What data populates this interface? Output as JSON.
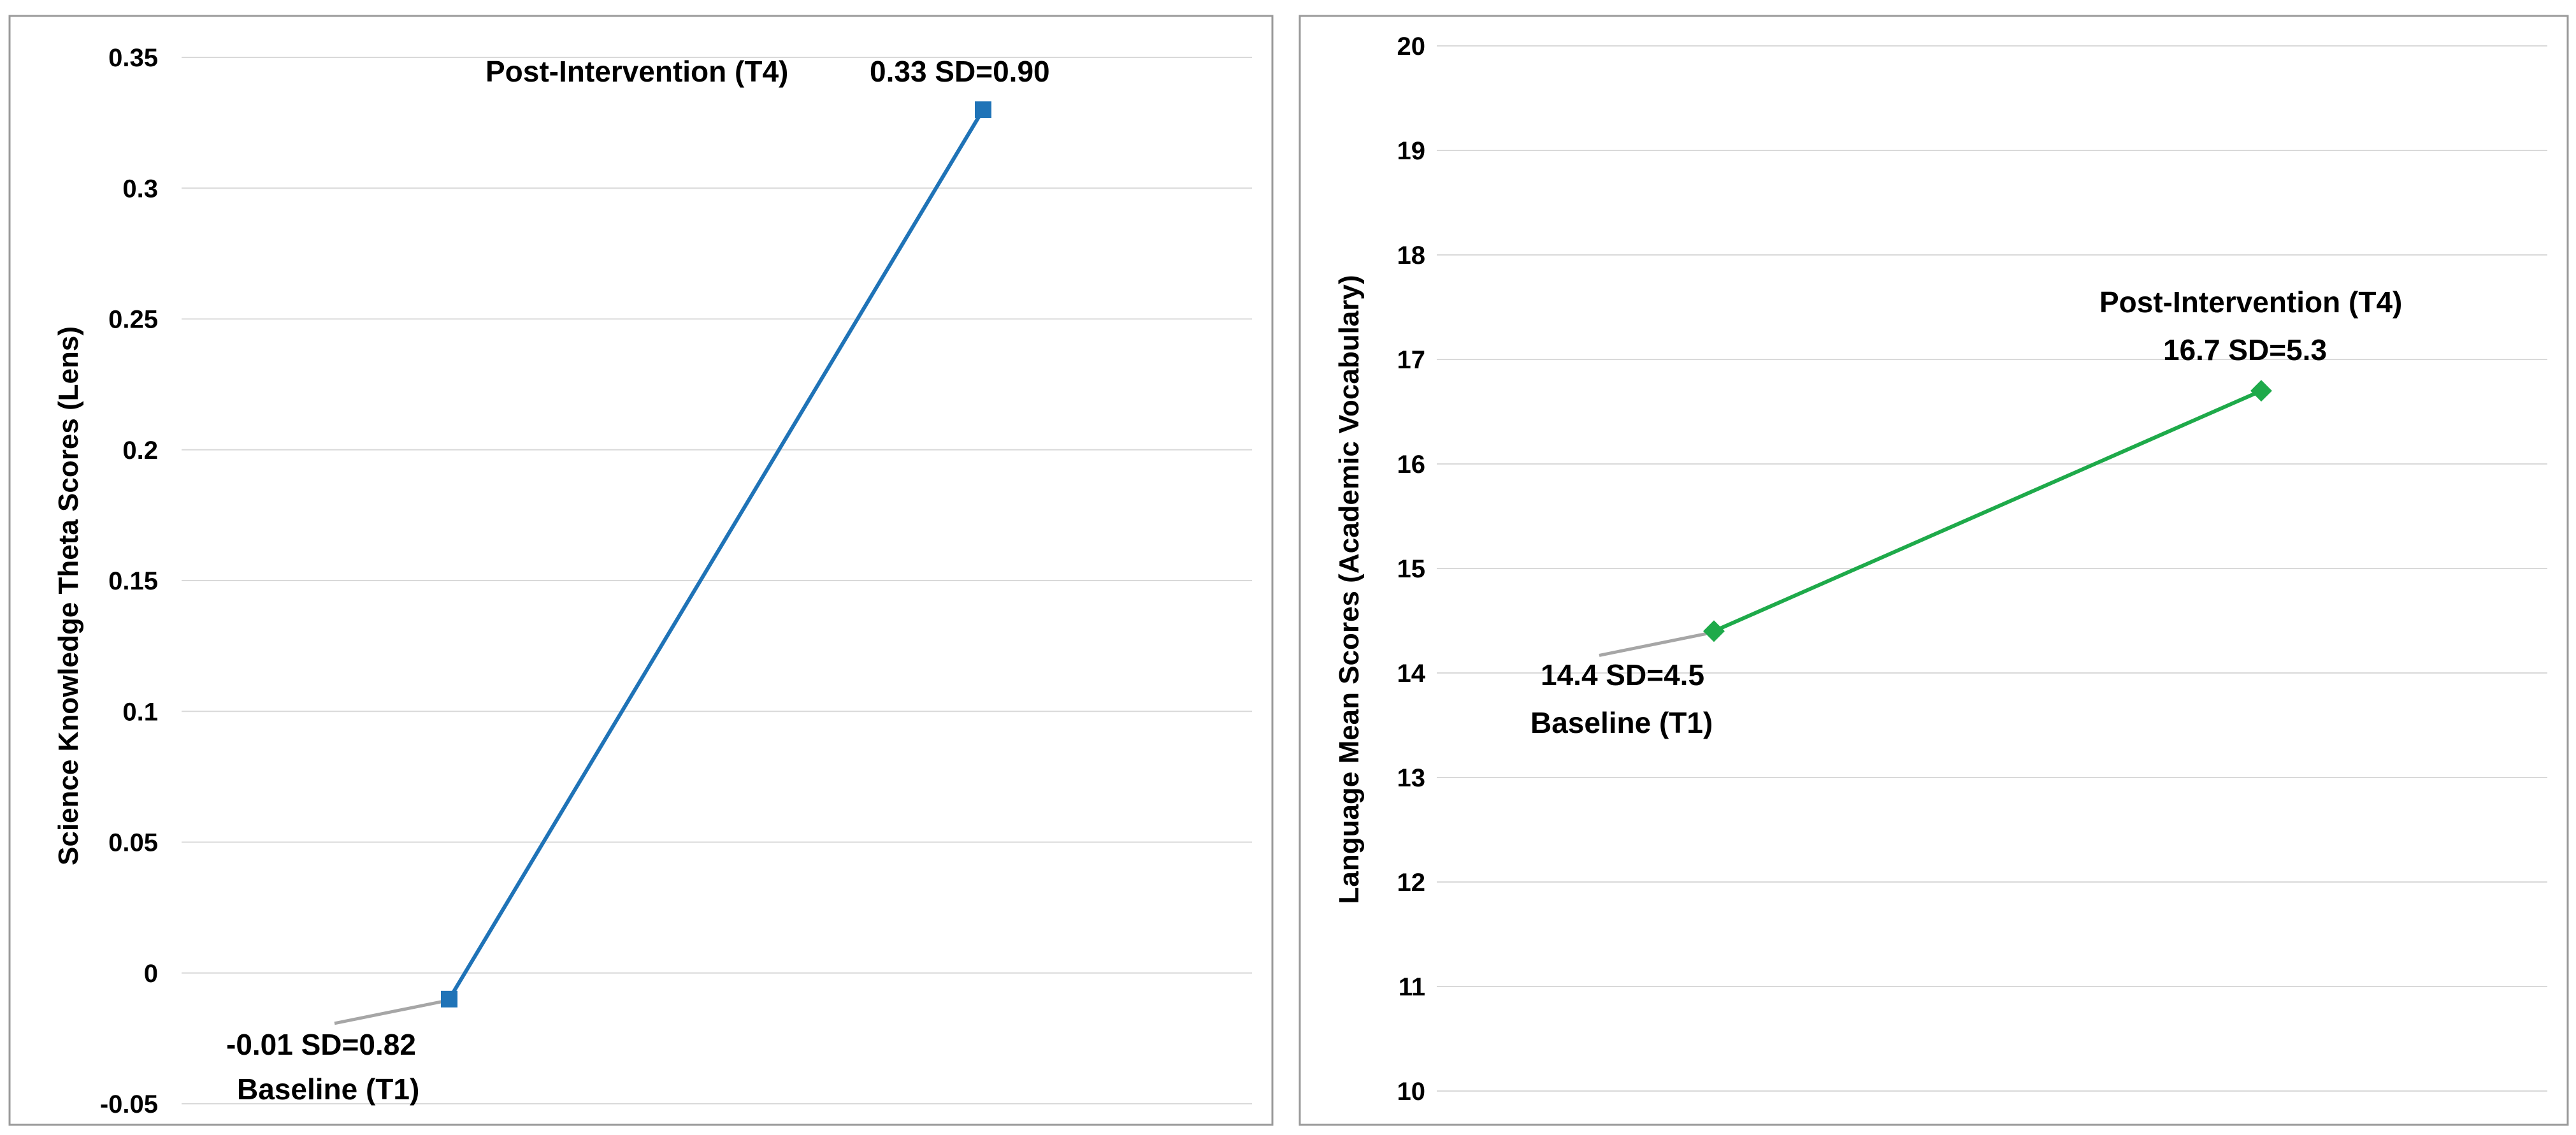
{
  "chart_data": [
    {
      "type": "line",
      "ylabel": "Science Knowledge Theta Scores (Lens)",
      "xlabel": "",
      "ylim": [
        -0.05,
        0.35
      ],
      "yticks": [
        "0.35",
        "0.3",
        "0.25",
        "0.2",
        "0.15",
        "0.1",
        "0.05",
        "0",
        "-0.05"
      ],
      "grid": true,
      "legend": false,
      "color": "#1f73b7",
      "marker": "square",
      "points": [
        {
          "x": "Baseline (T1)",
          "y": -0.01,
          "value_label": "-0.01 SD=0.82",
          "category_label": "Baseline (T1)"
        },
        {
          "x": "Post-Intervention (T4)",
          "y": 0.33,
          "value_label": "0.33 SD=0.90",
          "category_label": "Post-Intervention (T4)"
        }
      ]
    },
    {
      "type": "line",
      "ylabel": "Language Mean Scores  (Academic Vocabulary)",
      "xlabel": "",
      "ylim": [
        10,
        20
      ],
      "yticks": [
        "20",
        "19",
        "18",
        "17",
        "16",
        "15",
        "14",
        "13",
        "12",
        "11",
        "10"
      ],
      "grid": true,
      "legend": false,
      "color": "#1eaa4a",
      "marker": "diamond",
      "points": [
        {
          "x": "Baseline (T1)",
          "y": 14.4,
          "value_label": "14.4 SD=4.5",
          "category_label": "Baseline (T1)"
        },
        {
          "x": "Post-Intervention (T4)",
          "y": 16.7,
          "value_label": "16.7 SD=5.3",
          "category_label": "Post-Intervention (T4)"
        }
      ]
    }
  ]
}
